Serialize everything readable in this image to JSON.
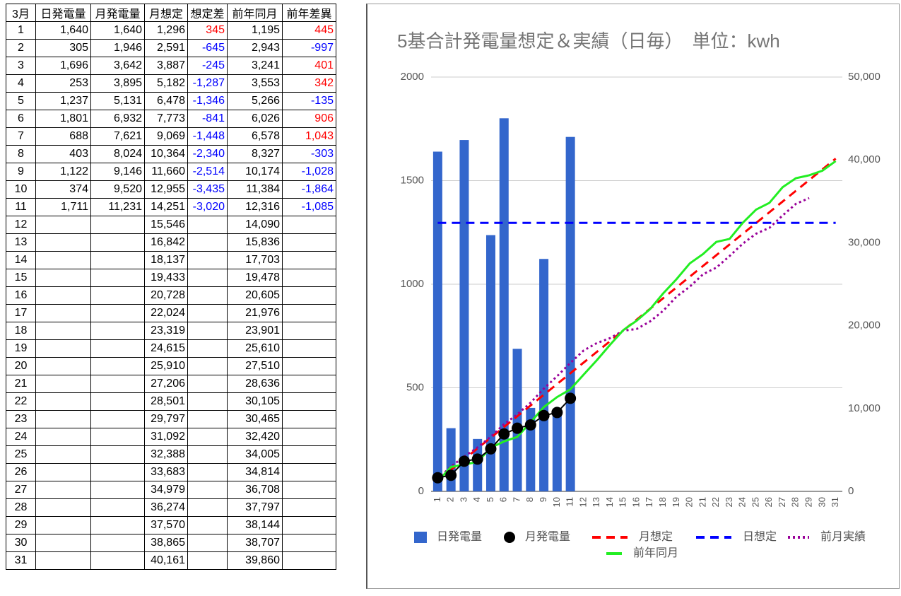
{
  "table": {
    "header": [
      "3月",
      "日発電量",
      "月発電量",
      "月想定",
      "想定差",
      "前年同月",
      "前年差異"
    ],
    "positive_color": "#ff0000",
    "negative_color": "#0000ff",
    "rows": [
      [
        "1",
        "1,640",
        "1,640",
        "1,296",
        "345",
        "1,195",
        "445"
      ],
      [
        "2",
        "305",
        "1,946",
        "2,591",
        "-645",
        "2,943",
        "-997"
      ],
      [
        "3",
        "1,696",
        "3,642",
        "3,887",
        "-245",
        "3,241",
        "401"
      ],
      [
        "4",
        "253",
        "3,895",
        "5,182",
        "-1,287",
        "3,553",
        "342"
      ],
      [
        "5",
        "1,237",
        "5,131",
        "6,478",
        "-1,346",
        "5,266",
        "-135"
      ],
      [
        "6",
        "1,801",
        "6,932",
        "7,773",
        "-841",
        "6,026",
        "906"
      ],
      [
        "7",
        "688",
        "7,621",
        "9,069",
        "-1,448",
        "6,578",
        "1,043"
      ],
      [
        "8",
        "403",
        "8,024",
        "10,364",
        "-2,340",
        "8,327",
        "-303"
      ],
      [
        "9",
        "1,122",
        "9,146",
        "11,660",
        "-2,514",
        "10,174",
        "-1,028"
      ],
      [
        "10",
        "374",
        "9,520",
        "12,955",
        "-3,435",
        "11,384",
        "-1,864"
      ],
      [
        "11",
        "1,711",
        "11,231",
        "14,251",
        "-3,020",
        "12,316",
        "-1,085"
      ],
      [
        "12",
        null,
        null,
        "15,546",
        null,
        "14,090",
        null
      ],
      [
        "13",
        null,
        null,
        "16,842",
        null,
        "15,836",
        null
      ],
      [
        "14",
        null,
        null,
        "18,137",
        null,
        "17,703",
        null
      ],
      [
        "15",
        null,
        null,
        "19,433",
        null,
        "19,478",
        null
      ],
      [
        "16",
        null,
        null,
        "20,728",
        null,
        "20,605",
        null
      ],
      [
        "17",
        null,
        null,
        "22,024",
        null,
        "21,976",
        null
      ],
      [
        "18",
        null,
        null,
        "23,319",
        null,
        "23,901",
        null
      ],
      [
        "19",
        null,
        null,
        "24,615",
        null,
        "25,610",
        null
      ],
      [
        "20",
        null,
        null,
        "25,910",
        null,
        "27,510",
        null
      ],
      [
        "21",
        null,
        null,
        "27,206",
        null,
        "28,636",
        null
      ],
      [
        "22",
        null,
        null,
        "28,501",
        null,
        "30,105",
        null
      ],
      [
        "23",
        null,
        null,
        "29,797",
        null,
        "30,465",
        null
      ],
      [
        "24",
        null,
        null,
        "31,092",
        null,
        "32,420",
        null
      ],
      [
        "25",
        null,
        null,
        "32,388",
        null,
        "34,005",
        null
      ],
      [
        "26",
        null,
        null,
        "33,683",
        null,
        "34,814",
        null
      ],
      [
        "27",
        null,
        null,
        "34,979",
        null,
        "36,708",
        null
      ],
      [
        "28",
        null,
        null,
        "36,274",
        null,
        "37,797",
        null
      ],
      [
        "29",
        null,
        null,
        "37,570",
        null,
        "38,144",
        null
      ],
      [
        "30",
        null,
        null,
        "38,865",
        null,
        "38,707",
        null
      ],
      [
        "31",
        null,
        null,
        "40,161",
        null,
        "39,860",
        null
      ]
    ]
  },
  "chart_data": {
    "type": "combo",
    "title": "5基合計発電量想定＆実績（日毎）　単位：kwh",
    "categories": [
      1,
      2,
      3,
      4,
      5,
      6,
      7,
      8,
      9,
      10,
      11,
      12,
      13,
      14,
      15,
      16,
      17,
      18,
      19,
      20,
      21,
      22,
      23,
      24,
      25,
      26,
      27,
      28,
      29,
      30,
      31
    ],
    "ylim": [
      0,
      2000
    ],
    "yticks": [
      0,
      500,
      1000,
      1500,
      2000
    ],
    "y2lim": [
      0,
      50000
    ],
    "y2ticks": [
      0,
      {
        "value": 10000,
        "label": "10,000"
      },
      {
        "value": 20000,
        "label": "20,000"
      },
      {
        "value": 30000,
        "label": "30,000"
      },
      {
        "value": 40000,
        "label": "40,000"
      },
      {
        "value": 50000,
        "label": "50,000"
      }
    ],
    "grid": true,
    "legend": "bottom",
    "series": [
      {
        "name": "日発電量",
        "kind": "bar",
        "color": "#3366cc",
        "values": [
          1640,
          305,
          1696,
          253,
          1237,
          1801,
          688,
          403,
          1122,
          374,
          1711,
          null,
          null,
          null,
          null,
          null,
          null,
          null,
          null,
          null,
          null,
          null,
          null,
          null,
          null,
          null,
          null,
          null,
          null,
          null,
          null
        ]
      },
      {
        "name": "月発電量",
        "kind": "marker-line",
        "color": "#000000",
        "axis": "y2",
        "values": [
          1640,
          1946,
          3642,
          3895,
          5131,
          6932,
          7621,
          8024,
          9146,
          9520,
          11231,
          null,
          null,
          null,
          null,
          null,
          null,
          null,
          null,
          null,
          null,
          null,
          null,
          null,
          null,
          null,
          null,
          null,
          null,
          null,
          null
        ]
      },
      {
        "name": "月想定",
        "kind": "line",
        "dash": "dashed",
        "color": "#ff0000",
        "axis": "y2",
        "values": [
          1296,
          2591,
          3887,
          5182,
          6478,
          7773,
          9069,
          10364,
          11660,
          12955,
          14251,
          15546,
          16842,
          18137,
          19433,
          20728,
          22024,
          23319,
          24615,
          25910,
          27206,
          28501,
          29797,
          31092,
          32388,
          33683,
          34979,
          36274,
          37570,
          38865,
          40161
        ]
      },
      {
        "name": "日想定",
        "kind": "line",
        "dash": "dashed",
        "color": "#0000ff",
        "values": [
          1296,
          1296,
          1296,
          1296,
          1296,
          1296,
          1296,
          1296,
          1296,
          1296,
          1296,
          1296,
          1296,
          1296,
          1296,
          1296,
          1296,
          1296,
          1296,
          1296,
          1296,
          1296,
          1296,
          1296,
          1296,
          1296,
          1296,
          1296,
          1296,
          1296,
          1296
        ]
      },
      {
        "name": "前月実績",
        "kind": "line",
        "dash": "dotted",
        "color": "#990099",
        "axis": "y2",
        "values": [
          1500,
          3000,
          4200,
          5300,
          6600,
          8100,
          9300,
          10700,
          12400,
          13900,
          15500,
          17000,
          17900,
          18500,
          19400,
          19600,
          20500,
          21800,
          23500,
          24700,
          26200,
          27000,
          28400,
          29900,
          31100,
          31800,
          33300,
          34700,
          35400,
          null,
          null
        ]
      },
      {
        "name": "前年同月",
        "kind": "line",
        "dash": "solid",
        "color": "#22ee22",
        "axis": "y2",
        "values": [
          1195,
          2943,
          3241,
          3553,
          5266,
          6026,
          6578,
          8327,
          10174,
          11384,
          12316,
          14090,
          15836,
          17703,
          19478,
          20605,
          21976,
          23901,
          25610,
          27510,
          28636,
          30105,
          30465,
          32420,
          34005,
          34814,
          36708,
          37797,
          38144,
          38707,
          39860
        ]
      }
    ]
  }
}
